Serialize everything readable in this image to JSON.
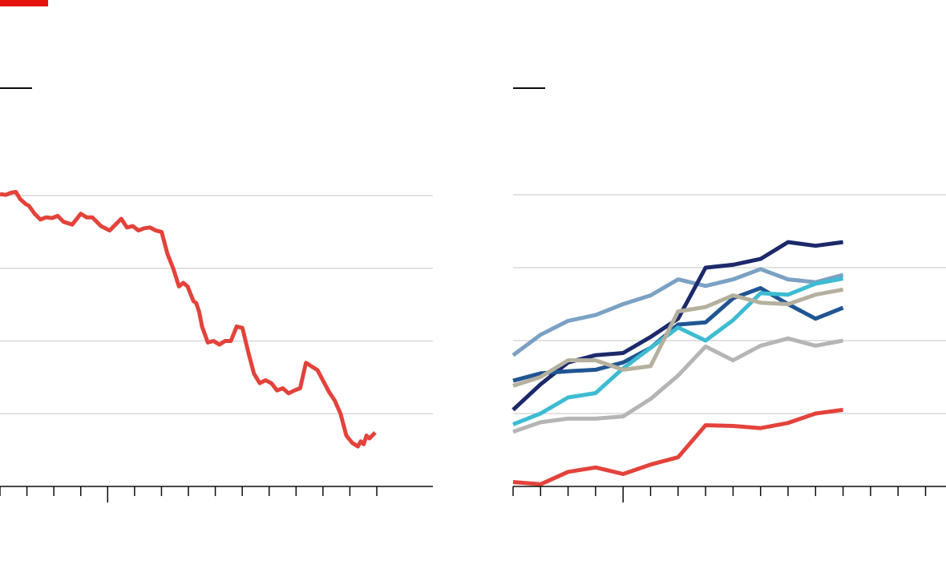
{
  "colors": {
    "accent": "#e3120b",
    "gridline": "#d9d9d9",
    "axis": "#0d0d0d",
    "red_series": "#e3433b",
    "navy_series": "#1c2a6b",
    "mid_blue_series": "#1f5593",
    "light_blue_series": "#7ba1c4",
    "cyan_series": "#3dbcd2",
    "tan_series": "#b5b09e",
    "grey_series": "#b5b5b5"
  },
  "chart_data": [
    {
      "type": "line",
      "title": "",
      "xlabel": "",
      "ylabel": "",
      "xlim": [
        0,
        15
      ],
      "ylim": [
        0,
        4
      ],
      "grid": true,
      "gridlines_y": [
        1,
        2,
        3,
        4
      ],
      "x_ticks": [
        0,
        1,
        2,
        3,
        4,
        5,
        6,
        7,
        8,
        9,
        10,
        11,
        12,
        13,
        14
      ],
      "x_major_tick": 4,
      "series": [
        {
          "color_key": "red_series",
          "x": [
            0,
            0.2,
            0.4,
            0.55,
            0.7,
            0.9,
            1.0,
            1.2,
            1.4,
            1.6,
            1.8,
            2.0,
            2.2,
            2.5,
            2.8,
            3.0,
            3.2,
            3.5,
            3.8,
            4.0,
            4.2,
            4.4,
            4.6,
            4.8,
            5.0,
            5.2,
            5.4,
            5.6,
            5.8,
            6.0,
            6.2,
            6.35,
            6.5,
            6.6,
            6.7,
            6.8,
            6.9,
            7.0,
            7.2,
            7.4,
            7.6,
            7.8,
            8.0,
            8.2,
            8.4,
            8.6,
            8.8,
            9.0,
            9.2,
            9.4,
            9.6,
            9.8,
            10.0,
            10.2,
            10.4,
            10.6,
            10.8,
            11.0,
            11.2,
            11.4,
            11.6,
            11.8,
            12.0,
            12.2,
            12.4,
            12.5,
            12.6,
            12.7,
            12.8,
            13.0
          ],
          "values": [
            4.02,
            4.01,
            4.04,
            4.05,
            3.95,
            3.88,
            3.86,
            3.75,
            3.67,
            3.7,
            3.69,
            3.72,
            3.64,
            3.6,
            3.75,
            3.7,
            3.7,
            3.58,
            3.52,
            3.6,
            3.68,
            3.56,
            3.58,
            3.52,
            3.55,
            3.56,
            3.52,
            3.5,
            3.2,
            3.0,
            2.75,
            2.8,
            2.75,
            2.65,
            2.55,
            2.52,
            2.4,
            2.2,
            1.98,
            2.0,
            1.95,
            2.0,
            2.0,
            2.2,
            2.18,
            1.85,
            1.55,
            1.42,
            1.46,
            1.42,
            1.32,
            1.35,
            1.28,
            1.32,
            1.35,
            1.7,
            1.65,
            1.6,
            1.45,
            1.3,
            1.18,
            1.0,
            0.7,
            0.6,
            0.55,
            0.62,
            0.58,
            0.7,
            0.66,
            0.74
          ]
        }
      ]
    },
    {
      "type": "line",
      "title": "",
      "xlabel": "",
      "ylabel": "",
      "xlim": [
        0,
        15.8
      ],
      "ylim": [
        0,
        4
      ],
      "grid": true,
      "gridlines_y": [
        1,
        2,
        3,
        4
      ],
      "x_ticks": [
        0,
        1,
        2,
        3,
        4,
        5,
        6,
        7,
        8,
        9,
        10,
        11,
        12,
        13,
        14,
        15
      ],
      "x_major_tick": 4,
      "x": [
        0,
        1,
        2,
        3,
        4,
        5,
        6,
        7,
        8,
        9,
        10,
        11,
        12
      ],
      "series": [
        {
          "color_key": "light_blue_series",
          "values": [
            1.8,
            2.08,
            2.27,
            2.35,
            2.5,
            2.62,
            2.84,
            2.75,
            2.84,
            2.98,
            2.84,
            2.8,
            2.9
          ]
        },
        {
          "color_key": "navy_series",
          "values": [
            1.05,
            1.4,
            1.7,
            1.8,
            1.83,
            2.05,
            2.3,
            3.0,
            3.04,
            3.12,
            3.35,
            3.3,
            3.35
          ]
        },
        {
          "color_key": "mid_blue_series",
          "values": [
            1.45,
            1.55,
            1.58,
            1.6,
            1.7,
            1.9,
            2.22,
            2.25,
            2.58,
            2.72,
            2.5,
            2.3,
            2.45
          ]
        },
        {
          "color_key": "cyan_series",
          "values": [
            0.85,
            1.0,
            1.22,
            1.28,
            1.62,
            1.9,
            2.18,
            2.0,
            2.28,
            2.65,
            2.63,
            2.78,
            2.85
          ]
        },
        {
          "color_key": "tan_series",
          "values": [
            1.38,
            1.5,
            1.73,
            1.73,
            1.6,
            1.65,
            2.4,
            2.46,
            2.62,
            2.52,
            2.5,
            2.63,
            2.7
          ]
        },
        {
          "color_key": "grey_series",
          "values": [
            0.75,
            0.88,
            0.93,
            0.93,
            0.96,
            1.2,
            1.52,
            1.92,
            1.73,
            1.93,
            2.03,
            1.93,
            2.0
          ]
        },
        {
          "color_key": "red_series",
          "values": [
            0.06,
            0.03,
            0.2,
            0.26,
            0.17,
            0.3,
            0.4,
            0.84,
            0.83,
            0.8,
            0.87,
            1.0,
            1.05
          ]
        }
      ]
    }
  ]
}
